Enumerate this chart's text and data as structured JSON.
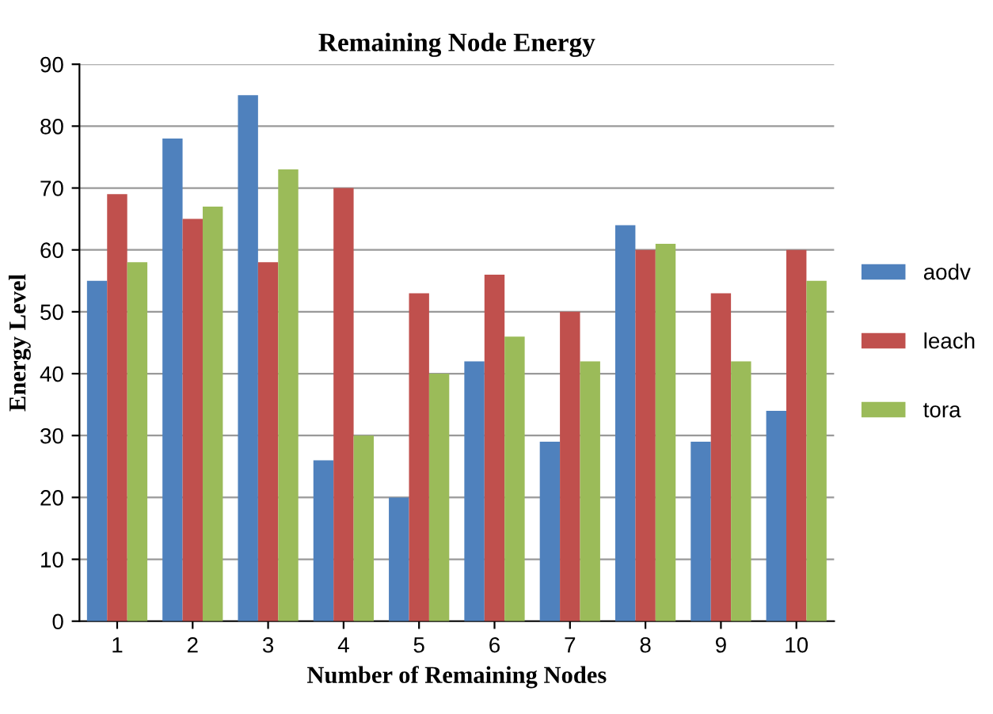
{
  "chart_data": {
    "type": "bar",
    "title": "Remaining Node Energy",
    "xlabel": "Number of Remaining Nodes",
    "ylabel": "Energy Level",
    "categories": [
      "1",
      "2",
      "3",
      "4",
      "5",
      "6",
      "7",
      "8",
      "9",
      "10"
    ],
    "series": [
      {
        "name": "aodv",
        "color": "#4f81bd",
        "values": [
          55,
          78,
          85,
          26,
          20,
          42,
          29,
          64,
          29,
          34
        ]
      },
      {
        "name": "leach",
        "color": "#c0504d",
        "values": [
          69,
          65,
          58,
          70,
          53,
          56,
          50,
          60,
          53,
          60
        ]
      },
      {
        "name": "tora",
        "color": "#9bbb59",
        "values": [
          58,
          67,
          73,
          30,
          40,
          46,
          42,
          61,
          42,
          55
        ]
      }
    ],
    "ylim": [
      0,
      90
    ],
    "yticks": [
      0,
      10,
      20,
      30,
      40,
      50,
      60,
      70,
      80,
      90
    ],
    "grid": "y",
    "legend": "right"
  }
}
